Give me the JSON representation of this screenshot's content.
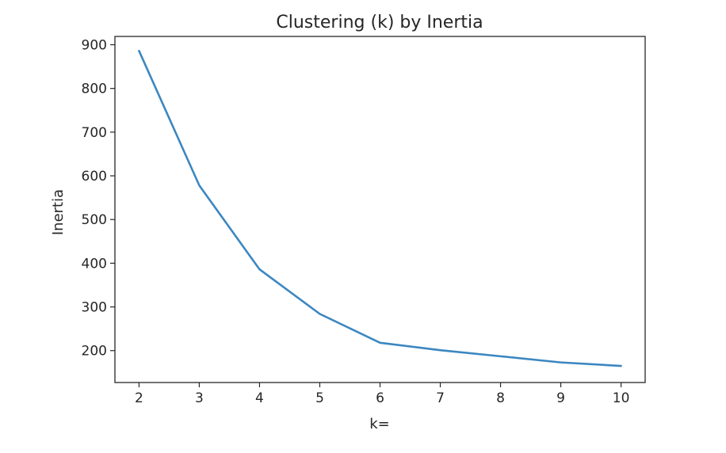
{
  "chart_data": {
    "type": "line",
    "title": "Clustering (k) by Inertia",
    "xlabel": "k=",
    "ylabel": "Inertia",
    "x": [
      2,
      3,
      4,
      5,
      6,
      7,
      8,
      9,
      10
    ],
    "series": [
      {
        "values": [
          886,
          578,
          386,
          284,
          218,
          201,
          187,
          173,
          165
        ],
        "color": "#3c87c0"
      }
    ],
    "xlim": [
      1.6,
      10.4
    ],
    "ylim": [
      127,
      919
    ],
    "xticks": [
      "2",
      "3",
      "4",
      "5",
      "6",
      "7",
      "8",
      "9",
      "10"
    ],
    "yticks": [
      "200",
      "300",
      "400",
      "500",
      "600",
      "700",
      "800",
      "900"
    ],
    "grid": false
  }
}
